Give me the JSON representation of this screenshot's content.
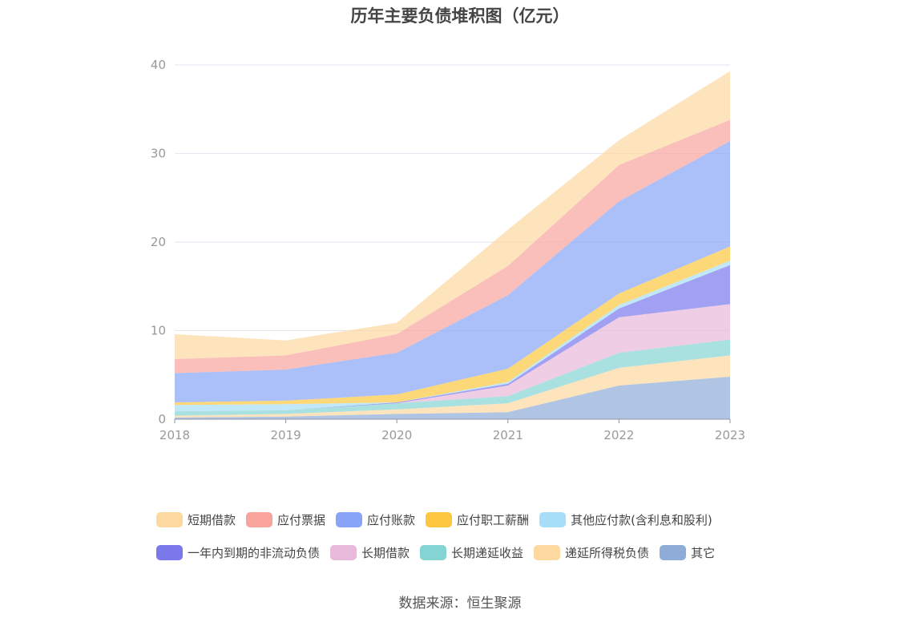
{
  "source_text": "数据来源：恒生聚源",
  "chart_data": {
    "type": "area",
    "stacked": true,
    "title": "历年主要负债堆积图（亿元）",
    "x": [
      "2018",
      "2019",
      "2020",
      "2021",
      "2022",
      "2023"
    ],
    "ylim": [
      0,
      40
    ],
    "yticks": [
      0,
      10,
      20,
      30,
      40
    ],
    "grid": true,
    "legend_position": "bottom",
    "series": [
      {
        "name": "其它",
        "color": "#8fabd8",
        "values": [
          0.2,
          0.3,
          0.6,
          0.8,
          3.8,
          4.8
        ]
      },
      {
        "name": "递延所得税负债",
        "color": "#fdd9a0",
        "values": [
          0.2,
          0.3,
          0.5,
          1.0,
          2.0,
          2.4
        ]
      },
      {
        "name": "长期递延收益",
        "color": "#85d4d4",
        "values": [
          0.5,
          0.4,
          0.7,
          0.8,
          1.7,
          1.8
        ]
      },
      {
        "name": "长期借款",
        "color": "#e8b9da",
        "values": [
          0.0,
          0.0,
          0.0,
          1.2,
          4.0,
          4.0
        ]
      },
      {
        "name": "一年内到期的非流动负债",
        "color": "#7b78ec",
        "values": [
          0.0,
          0.0,
          0.1,
          0.2,
          1.0,
          4.4
        ]
      },
      {
        "name": "其他应付款(含利息和股利)",
        "color": "#a6def7",
        "values": [
          0.7,
          0.7,
          0.0,
          0.2,
          0.4,
          0.5
        ]
      },
      {
        "name": "应付职工薪酬",
        "color": "#fcc73e",
        "values": [
          0.3,
          0.4,
          0.9,
          1.5,
          1.3,
          1.6
        ]
      },
      {
        "name": "应付账款",
        "color": "#88a4f6",
        "values": [
          3.3,
          3.5,
          4.7,
          8.3,
          10.4,
          11.9
        ]
      },
      {
        "name": "应付票据",
        "color": "#f8a49c",
        "values": [
          1.6,
          1.6,
          2.1,
          3.3,
          4.1,
          2.4
        ]
      },
      {
        "name": "短期借款",
        "color": "#fdd9a0",
        "values": [
          2.8,
          1.7,
          1.3,
          4.1,
          2.8,
          5.5
        ]
      }
    ],
    "legend_order": [
      "短期借款",
      "应付票据",
      "应付账款",
      "应付职工薪酬",
      "其他应付款(含利息和股利)",
      "一年内到期的非流动负债",
      "长期借款",
      "长期递延收益",
      "递延所得税负债",
      "其它"
    ]
  }
}
